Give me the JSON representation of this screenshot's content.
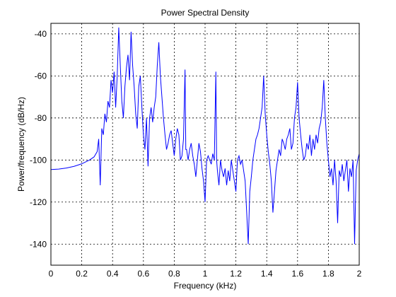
{
  "chart_data": {
    "type": "line",
    "title": "Power Spectral Density",
    "xlabel": "Frequency (kHz)",
    "ylabel": "Power/frequency (dB/Hz)",
    "xlim": [
      0,
      2
    ],
    "xticks": [
      0,
      0.2,
      0.4,
      0.6,
      0.8,
      1,
      1.2,
      1.4,
      1.6,
      1.8,
      2
    ],
    "ylim": [
      -150,
      -35
    ],
    "yticks": [
      -140,
      -120,
      -100,
      -80,
      -60,
      -40
    ],
    "grid": true,
    "color": "#0000ff",
    "x": [
      0,
      0.05,
      0.1,
      0.15,
      0.2,
      0.25,
      0.28,
      0.3,
      0.31,
      0.32,
      0.33,
      0.34,
      0.35,
      0.36,
      0.37,
      0.38,
      0.39,
      0.4,
      0.41,
      0.42,
      0.43,
      0.44,
      0.45,
      0.46,
      0.47,
      0.48,
      0.49,
      0.5,
      0.51,
      0.52,
      0.53,
      0.54,
      0.55,
      0.56,
      0.57,
      0.58,
      0.59,
      0.6,
      0.61,
      0.62,
      0.63,
      0.64,
      0.65,
      0.66,
      0.67,
      0.68,
      0.69,
      0.7,
      0.71,
      0.72,
      0.73,
      0.74,
      0.75,
      0.76,
      0.77,
      0.78,
      0.79,
      0.8,
      0.81,
      0.82,
      0.83,
      0.84,
      0.85,
      0.86,
      0.87,
      0.875,
      0.88,
      0.89,
      0.9,
      0.91,
      0.92,
      0.93,
      0.94,
      0.95,
      0.96,
      0.97,
      0.98,
      0.99,
      1.0,
      1.01,
      1.02,
      1.03,
      1.04,
      1.05,
      1.06,
      1.07,
      1.075,
      1.08,
      1.09,
      1.1,
      1.11,
      1.12,
      1.13,
      1.14,
      1.15,
      1.16,
      1.17,
      1.18,
      1.19,
      1.2,
      1.21,
      1.22,
      1.23,
      1.24,
      1.25,
      1.26,
      1.27,
      1.28,
      1.29,
      1.3,
      1.31,
      1.32,
      1.33,
      1.34,
      1.35,
      1.36,
      1.37,
      1.38,
      1.39,
      1.4,
      1.41,
      1.42,
      1.43,
      1.44,
      1.45,
      1.46,
      1.47,
      1.48,
      1.49,
      1.5,
      1.51,
      1.52,
      1.53,
      1.54,
      1.55,
      1.56,
      1.57,
      1.58,
      1.59,
      1.6,
      1.61,
      1.62,
      1.63,
      1.64,
      1.65,
      1.66,
      1.67,
      1.68,
      1.69,
      1.7,
      1.71,
      1.72,
      1.73,
      1.74,
      1.75,
      1.76,
      1.77,
      1.78,
      1.79,
      1.8,
      1.81,
      1.82,
      1.83,
      1.84,
      1.85,
      1.86,
      1.87,
      1.88,
      1.89,
      1.9,
      1.91,
      1.92,
      1.93,
      1.94,
      1.95,
      1.96,
      1.97,
      1.98,
      1.99,
      2.0
    ],
    "values": [
      -104.5,
      -104.3,
      -103.8,
      -103,
      -101.8,
      -100,
      -98.5,
      -96,
      -90,
      -112,
      -85,
      -88,
      -78,
      -82,
      -72,
      -75,
      -62,
      -68,
      -58,
      -75,
      -60,
      -37,
      -55,
      -72,
      -80,
      -65,
      -56,
      -50,
      -62,
      -39,
      -55,
      -65,
      -78,
      -85,
      -65,
      -60,
      -75,
      -88,
      -95,
      -80,
      -103,
      -80,
      -75,
      -82,
      -75,
      -70,
      -55,
      -44,
      -60,
      -70,
      -80,
      -88,
      -95,
      -92,
      -88,
      -86,
      -92,
      -98,
      -90,
      -85,
      -88,
      -100,
      -98,
      -90,
      -57,
      -95,
      -95,
      -100,
      -95,
      -92,
      -98,
      -102,
      -108,
      -100,
      -92,
      -96,
      -104,
      -110,
      -120,
      -100,
      -98,
      -100,
      -102,
      -97,
      -100,
      -58,
      -100,
      -105,
      -112,
      -100,
      -105,
      -108,
      -104,
      -112,
      -105,
      -110,
      -100,
      -105,
      -110,
      -115,
      -100,
      -98,
      -102,
      -100,
      -105,
      -110,
      -125,
      -140,
      -115,
      -108,
      -100,
      -95,
      -90,
      -88,
      -85,
      -80,
      -75,
      -60,
      -78,
      -88,
      -96,
      -102,
      -110,
      -125,
      -115,
      -105,
      -100,
      -95,
      -98,
      -90,
      -92,
      -95,
      -90,
      -88,
      -85,
      -95,
      -92,
      -80,
      -75,
      -63,
      -80,
      -88,
      -95,
      -100,
      -98,
      -92,
      -95,
      -88,
      -98,
      -90,
      -95,
      -88,
      -92,
      -85,
      -82,
      -75,
      -62,
      -80,
      -92,
      -100,
      -108,
      -104,
      -112,
      -100,
      -110,
      -130,
      -105,
      -108,
      -102,
      -110,
      -105,
      -100,
      -115,
      -104,
      -108,
      -100,
      -140,
      -105,
      -100,
      -97
    ]
  }
}
